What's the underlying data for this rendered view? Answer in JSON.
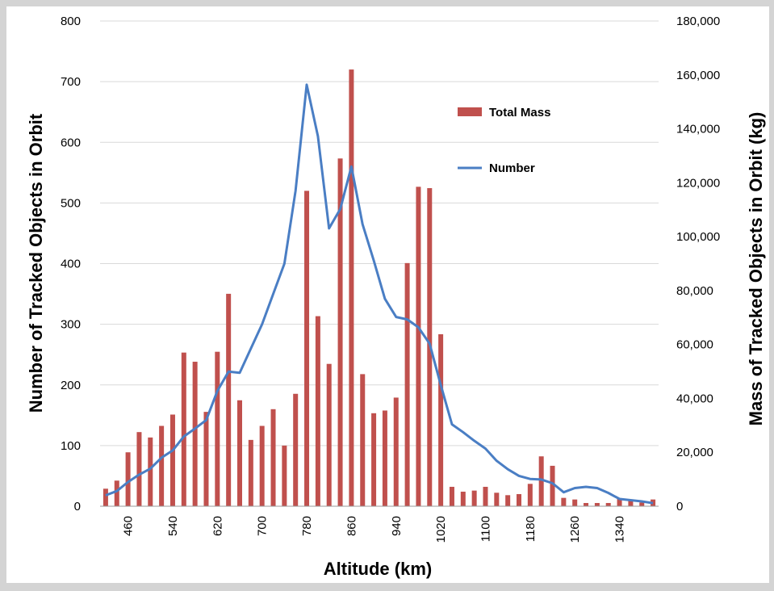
{
  "chart_data": {
    "type": "bar+line",
    "xlabel": "Altitude (km)",
    "ylabel_left": "Number of Tracked Objects in Orbit",
    "ylabel_right": "Mass of Tracked Objects in Orbit (kg)",
    "ylim_left": [
      0,
      800
    ],
    "ylim_right": [
      0,
      180000
    ],
    "yticks_left": [
      "0",
      "100",
      "200",
      "300",
      "400",
      "500",
      "600",
      "700",
      "800"
    ],
    "yticks_right": [
      "0",
      "20,000",
      "40,000",
      "60,000",
      "80,000",
      "100,000",
      "120,000",
      "140,000",
      "160,000",
      "180,000"
    ],
    "x_tick_labels": [
      "460",
      "540",
      "620",
      "700",
      "780",
      "860",
      "940",
      "1020",
      "1100",
      "1180",
      "1260",
      "1340"
    ],
    "x": [
      420,
      440,
      460,
      480,
      500,
      520,
      540,
      560,
      580,
      600,
      620,
      640,
      660,
      680,
      700,
      720,
      740,
      760,
      780,
      800,
      820,
      840,
      860,
      880,
      900,
      920,
      940,
      960,
      980,
      1000,
      1020,
      1040,
      1060,
      1080,
      1100,
      1120,
      1140,
      1160,
      1180,
      1200,
      1220,
      1240,
      1260,
      1280,
      1300,
      1320,
      1340,
      1360,
      1380,
      1400
    ],
    "grid": true,
    "legend_position": "upper-right",
    "series": [
      {
        "name": "Total Mass",
        "type": "bar",
        "axis": "right",
        "color": "#c0504d",
        "values": [
          6500,
          9500,
          20000,
          27500,
          25500,
          29800,
          34000,
          57000,
          53600,
          35000,
          57300,
          78800,
          39300,
          24600,
          29800,
          36000,
          22500,
          41700,
          117000,
          70500,
          52800,
          129000,
          162000,
          49000,
          34500,
          35500,
          40300,
          90200,
          118500,
          118000,
          63800,
          7200,
          5400,
          5800,
          7200,
          5000,
          4100,
          4500,
          8300,
          18500,
          15000,
          3100,
          2500,
          1200,
          1200,
          1200,
          2700,
          2000,
          1400,
          2500
        ]
      },
      {
        "name": "Number",
        "type": "line",
        "axis": "left",
        "color": "#4a7ec4",
        "values": [
          18,
          25,
          40,
          52,
          62,
          80,
          92,
          115,
          128,
          142,
          190,
          222,
          220,
          260,
          300,
          350,
          400,
          520,
          695,
          610,
          458,
          490,
          560,
          465,
          405,
          342,
          312,
          308,
          295,
          268,
          200,
          135,
          122,
          108,
          95,
          75,
          61,
          50,
          45,
          44,
          38,
          23,
          30,
          32,
          30,
          22,
          12,
          10,
          8,
          5
        ]
      }
    ]
  }
}
